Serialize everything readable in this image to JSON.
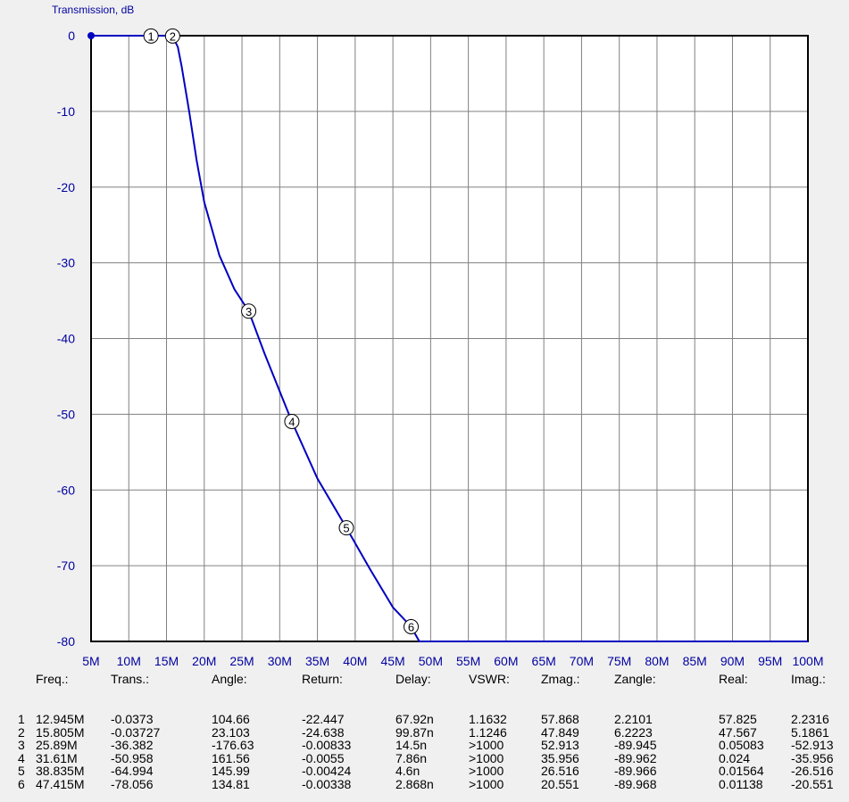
{
  "chart_data": {
    "type": "line",
    "title": "",
    "ylabel": "Transmission, dB",
    "xlabel": "",
    "xlim": [
      5,
      100
    ],
    "ylim": [
      -80,
      0
    ],
    "x_tick_labels": [
      "5M",
      "10M",
      "15M",
      "20M",
      "25M",
      "30M",
      "35M",
      "40M",
      "45M",
      "50M",
      "55M",
      "60M",
      "65M",
      "70M",
      "75M",
      "80M",
      "85M",
      "90M",
      "95M",
      "100M"
    ],
    "y_tick_labels": [
      "0",
      "-10",
      "-20",
      "-30",
      "-40",
      "-50",
      "-60",
      "-70",
      "-80"
    ],
    "grid": true,
    "colors": {
      "background": "#f0f0f0",
      "plot_area": "#ffffff",
      "grid": "#808080",
      "frame": "#000000",
      "series": "#0000c0",
      "axis_text": "#0000a0"
    },
    "series": [
      {
        "x": [
          5,
          6,
          8,
          10,
          12,
          12.945,
          14,
          15,
          15.805,
          16.5,
          17,
          18,
          19,
          20,
          22,
          24,
          25.89,
          28,
          31.61,
          35,
          38.835,
          42,
          45,
          47.415,
          48.5,
          100
        ],
        "y": [
          0,
          0,
          0,
          0,
          0,
          -0.0373,
          0,
          0,
          -0.03727,
          -1.5,
          -4,
          -10,
          -16.5,
          -22,
          -29,
          -33.5,
          -36.382,
          -42,
          -50.958,
          -58.5,
          -64.994,
          -70.5,
          -75.5,
          -78.056,
          -80,
          -80
        ]
      }
    ],
    "markers": [
      {
        "label": "1",
        "x": 12.945,
        "y": -0.0373
      },
      {
        "label": "2",
        "x": 15.805,
        "y": -0.03727
      },
      {
        "label": "3",
        "x": 25.89,
        "y": -36.382
      },
      {
        "label": "4",
        "x": 31.61,
        "y": -50.958
      },
      {
        "label": "5",
        "x": 38.835,
        "y": -64.994
      },
      {
        "label": "6",
        "x": 47.415,
        "y": -78.056
      }
    ],
    "start_point": {
      "x": 5,
      "y": 0
    }
  },
  "table": {
    "headers": [
      "Freq.:",
      "Trans.:",
      "Angle:",
      "Return:",
      "Delay:",
      "VSWR:",
      "Zmag.:",
      "Zangle:",
      "Real:",
      "Imag.:"
    ],
    "rows": [
      [
        "1",
        "12.945M",
        "-0.0373",
        "104.66",
        "-22.447",
        "67.92n",
        "1.1632",
        "57.868",
        "2.2101",
        "57.825",
        "2.2316"
      ],
      [
        "2",
        "15.805M",
        "-0.03727",
        "23.103",
        "-24.638",
        "99.87n",
        "1.1246",
        "47.849",
        "6.2223",
        "47.567",
        "5.1861"
      ],
      [
        "3",
        "25.89M",
        "-36.382",
        "-176.63",
        "-0.00833",
        "14.5n",
        ">1000",
        "52.913",
        "-89.945",
        "0.05083",
        "-52.913"
      ],
      [
        "4",
        "31.61M",
        "-50.958",
        "161.56",
        "-0.0055",
        "7.86n",
        ">1000",
        "35.956",
        "-89.962",
        "0.024",
        "-35.956"
      ],
      [
        "5",
        "38.835M",
        "-64.994",
        "145.99",
        "-0.00424",
        "4.6n",
        ">1000",
        "26.516",
        "-89.966",
        "0.01564",
        "-26.516"
      ],
      [
        "6",
        "47.415M",
        "-78.056",
        "134.81",
        "-0.00338",
        "2.868n",
        ">1000",
        "20.551",
        "-89.968",
        "0.01138",
        "-20.551"
      ]
    ]
  }
}
